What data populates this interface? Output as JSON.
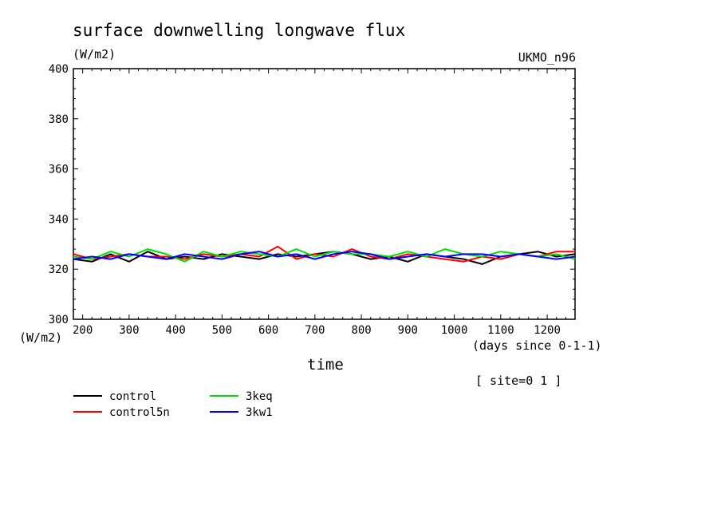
{
  "chart_data": {
    "type": "line",
    "title": "surface downwelling longwave flux",
    "units": "(W/m2)",
    "model": "UKMO_n96",
    "ylabel": "(W/m2)",
    "xlabel": "time",
    "x_units": "(days since 0-1-1)",
    "site": "[ site=0 1 ]",
    "xlim": [
      180,
      1260
    ],
    "ylim": [
      300,
      400
    ],
    "x_ticks": [
      200,
      300,
      400,
      500,
      600,
      700,
      800,
      900,
      1000,
      1100,
      1200
    ],
    "y_ticks": [
      300,
      320,
      340,
      360,
      380,
      400
    ],
    "x": [
      180,
      220,
      260,
      300,
      340,
      380,
      420,
      460,
      500,
      540,
      580,
      620,
      660,
      700,
      740,
      780,
      820,
      860,
      900,
      940,
      980,
      1020,
      1060,
      1100,
      1140,
      1180,
      1220,
      1260
    ],
    "series": [
      {
        "name": "control",
        "color": "#000000",
        "values": [
          324,
          323,
          326,
          323,
          327,
          324,
          325,
          324,
          326,
          325,
          324,
          326,
          325,
          326,
          327,
          326,
          324,
          325,
          323,
          326,
          325,
          324,
          322,
          325,
          326,
          327,
          325,
          326
        ]
      },
      {
        "name": "control5n",
        "color": "#ff0000",
        "values": [
          326,
          324,
          325,
          326,
          325,
          325,
          324,
          326,
          325,
          326,
          325,
          329,
          324,
          326,
          325,
          328,
          325,
          324,
          326,
          325,
          324,
          323,
          325,
          324,
          326,
          325,
          327,
          327
        ]
      },
      {
        "name": "3keq",
        "color": "#00e000",
        "values": [
          325,
          324,
          327,
          325,
          328,
          326,
          323,
          327,
          325,
          327,
          326,
          325,
          328,
          325,
          327,
          326,
          326,
          325,
          327,
          325,
          328,
          326,
          325,
          327,
          326,
          325,
          326,
          324
        ]
      },
      {
        "name": "3kw1",
        "color": "#0000ff",
        "values": [
          324,
          325,
          324,
          326,
          325,
          324,
          326,
          325,
          324,
          326,
          327,
          325,
          326,
          324,
          326,
          327,
          326,
          324,
          325,
          326,
          325,
          326,
          326,
          325,
          326,
          325,
          324,
          325
        ]
      }
    ]
  }
}
